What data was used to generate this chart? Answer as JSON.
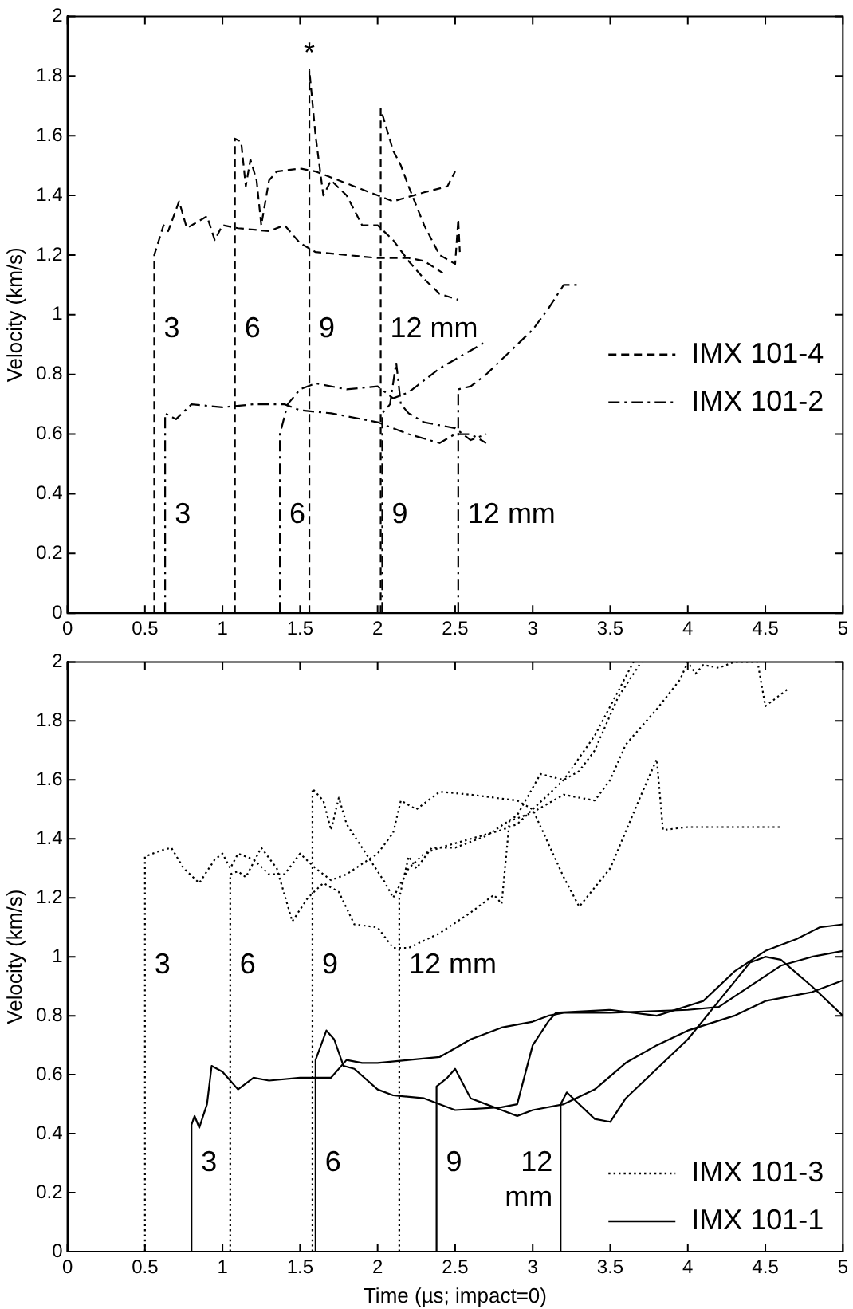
{
  "chart_data": [
    {
      "type": "line",
      "ylabel": "Velocity (km/s)",
      "xlim": [
        0,
        5
      ],
      "xticks": [
        0,
        0.5,
        1,
        1.5,
        2,
        2.5,
        3,
        3.5,
        4,
        4.5,
        5
      ],
      "ylim": [
        0,
        2
      ],
      "yticks": [
        0,
        0.2,
        0.4,
        0.6,
        0.8,
        1,
        1.2,
        1.4,
        1.6,
        1.8,
        2
      ],
      "grid": false,
      "legend": "right",
      "marker": "none",
      "series": [
        {
          "name": "IMX 101-4",
          "color": "#000000",
          "line_style": "dashed",
          "x": [
            0.56,
            0.56,
            0.62,
            0.65,
            0.72,
            0.77,
            0.9,
            0.95,
            1.0,
            1.1,
            1.3,
            1.4,
            1.5,
            1.6,
            1.8,
            2.0,
            2.2,
            2.3,
            2.42
          ],
          "values": [
            0,
            1.2,
            1.3,
            1.28,
            1.38,
            1.29,
            1.33,
            1.25,
            1.3,
            1.29,
            1.28,
            1.3,
            1.24,
            1.21,
            1.2,
            1.19,
            1.19,
            1.18,
            1.14
          ]
        },
        {
          "color": "#000000",
          "line_style": "dashed",
          "x": [
            1.08,
            1.08,
            1.12,
            1.15,
            1.18,
            1.22,
            1.25,
            1.3,
            1.35,
            1.5,
            1.6,
            1.75,
            2.0,
            2.1,
            2.3,
            2.45,
            2.5
          ],
          "values": [
            0,
            1.59,
            1.58,
            1.43,
            1.52,
            1.45,
            1.3,
            1.45,
            1.48,
            1.49,
            1.48,
            1.45,
            1.4,
            1.38,
            1.41,
            1.43,
            1.48
          ]
        },
        {
          "color": "#000000",
          "line_style": "dashed",
          "x": [
            1.56,
            1.56,
            1.6,
            1.65,
            1.7,
            1.8,
            1.9,
            2.0,
            2.1,
            2.2,
            2.3,
            2.4,
            2.52
          ],
          "values": [
            0,
            1.82,
            1.6,
            1.4,
            1.45,
            1.4,
            1.3,
            1.3,
            1.25,
            1.18,
            1.12,
            1.07,
            1.05
          ]
        },
        {
          "color": "#000000",
          "line_style": "dashed",
          "x": [
            2.02,
            2.02,
            2.1,
            2.15,
            2.2,
            2.3,
            2.4,
            2.5,
            2.52,
            2.53
          ],
          "values": [
            0,
            1.69,
            1.55,
            1.5,
            1.43,
            1.3,
            1.2,
            1.17,
            1.32,
            1.21
          ]
        },
        {
          "name": "IMX 101-2",
          "color": "#000000",
          "line_style": "dashdot",
          "x": [
            0.63,
            0.63,
            0.7,
            0.8,
            1.0,
            1.2,
            1.4,
            1.5,
            1.7,
            2.0,
            2.2,
            2.4,
            2.5,
            2.6,
            2.7
          ],
          "values": [
            0,
            0.67,
            0.65,
            0.7,
            0.69,
            0.7,
            0.7,
            0.68,
            0.67,
            0.64,
            0.6,
            0.57,
            0.6,
            0.6,
            0.57
          ]
        },
        {
          "color": "#000000",
          "line_style": "dashdot",
          "x": [
            1.37,
            1.37,
            1.42,
            1.5,
            1.6,
            1.8,
            2.0,
            2.1,
            2.2,
            2.4,
            2.6,
            2.7
          ],
          "values": [
            0,
            0.6,
            0.7,
            0.75,
            0.77,
            0.75,
            0.76,
            0.72,
            0.74,
            0.82,
            0.88,
            0.91
          ]
        },
        {
          "color": "#000000",
          "line_style": "dashdot",
          "x": [
            2.03,
            2.03,
            2.08,
            2.12,
            2.15,
            2.2,
            2.3,
            2.5,
            2.6,
            2.7
          ],
          "values": [
            0,
            0.67,
            0.7,
            0.84,
            0.7,
            0.67,
            0.64,
            0.62,
            0.58,
            0.6
          ]
        },
        {
          "color": "#000000",
          "line_style": "dashdot",
          "x": [
            2.52,
            2.52,
            2.6,
            2.7,
            2.8,
            3.0,
            3.1,
            3.2,
            3.3
          ],
          "values": [
            0,
            0.75,
            0.76,
            0.8,
            0.85,
            0.95,
            1.02,
            1.1,
            1.1
          ]
        }
      ],
      "annotations": [
        {
          "text": "*",
          "x": 1.56,
          "y": 1.82
        },
        {
          "text": "3",
          "x": 0.56,
          "y": 0.95
        },
        {
          "text": "6",
          "x": 1.08,
          "y": 0.95
        },
        {
          "text": "9",
          "x": 1.56,
          "y": 0.95
        },
        {
          "text": "12 mm",
          "x": 2.02,
          "y": 0.95
        },
        {
          "text": "3",
          "x": 0.63,
          "y": 0.33
        },
        {
          "text": "6",
          "x": 1.37,
          "y": 0.33
        },
        {
          "text": "9",
          "x": 2.03,
          "y": 0.33
        },
        {
          "text": "12 mm",
          "x": 2.52,
          "y": 0.33
        }
      ]
    },
    {
      "type": "line",
      "xlabel": "Time (µs; impact=0)",
      "ylabel": "Velocity (km/s)",
      "xlim": [
        0,
        5
      ],
      "xticks": [
        0,
        0.5,
        1,
        1.5,
        2,
        2.5,
        3,
        3.5,
        4,
        4.5,
        5
      ],
      "ylim": [
        0,
        2
      ],
      "yticks": [
        0,
        0.2,
        0.4,
        0.6,
        0.8,
        1,
        1.2,
        1.4,
        1.6,
        1.8,
        2
      ],
      "grid": false,
      "legend": "bottom right",
      "marker": "none",
      "series": [
        {
          "name": "IMX 101-3",
          "color": "#000000",
          "line_style": "dotted",
          "x": [
            0.5,
            0.5,
            0.6,
            0.67,
            0.75,
            0.85,
            0.95,
            1.0,
            1.05,
            1.1,
            1.2,
            1.3,
            1.4,
            1.5,
            1.6,
            1.7,
            1.8,
            2.0,
            2.1,
            2.15,
            2.25,
            2.4,
            2.6,
            2.9,
            3.0,
            3.2,
            3.3,
            3.5,
            3.7,
            3.8,
            3.84,
            4.0,
            4.5,
            4.6
          ],
          "values": [
            0,
            1.34,
            1.36,
            1.37,
            1.3,
            1.25,
            1.33,
            1.35,
            1.3,
            1.35,
            1.33,
            1.28,
            1.28,
            1.35,
            1.3,
            1.26,
            1.28,
            1.35,
            1.42,
            1.53,
            1.5,
            1.56,
            1.55,
            1.53,
            1.5,
            1.27,
            1.17,
            1.3,
            1.55,
            1.67,
            1.43,
            1.44,
            1.44,
            1.44
          ]
        },
        {
          "color": "#000000",
          "line_style": "dotted",
          "x": [
            1.05,
            1.05,
            1.1,
            1.15,
            1.25,
            1.35,
            1.45,
            1.55,
            1.65,
            1.75,
            1.85,
            2.0,
            2.1,
            2.2,
            2.4,
            2.6,
            2.75,
            2.8,
            2.85,
            3.0,
            3.2,
            3.4,
            3.5,
            3.6,
            3.8,
            3.95,
            4.0,
            4.05,
            4.1,
            4.2,
            4.3,
            4.45,
            4.5,
            4.65
          ],
          "values": [
            0,
            1.28,
            1.29,
            1.27,
            1.37,
            1.3,
            1.12,
            1.2,
            1.25,
            1.22,
            1.11,
            1.1,
            1.03,
            1.03,
            1.08,
            1.15,
            1.21,
            1.18,
            1.46,
            1.49,
            1.55,
            1.53,
            1.6,
            1.72,
            1.84,
            1.94,
            2.0,
            1.96,
            1.99,
            1.98,
            2.0,
            2.0,
            1.85,
            1.91
          ]
        },
        {
          "color": "#000000",
          "line_style": "dotted",
          "x": [
            1.58,
            1.58,
            1.65,
            1.7,
            1.75,
            1.8,
            1.9,
            2.05,
            2.1,
            2.2,
            2.3,
            2.4,
            2.6,
            2.8,
            2.9,
            3.0,
            3.2,
            3.4,
            3.6,
            3.65
          ],
          "values": [
            0,
            1.57,
            1.53,
            1.43,
            1.54,
            1.45,
            1.37,
            1.25,
            1.2,
            1.3,
            1.35,
            1.37,
            1.4,
            1.43,
            1.45,
            1.5,
            1.6,
            1.75,
            1.95,
            2.0
          ]
        },
        {
          "color": "#000000",
          "line_style": "dotted",
          "x": [
            2.14,
            2.14,
            2.2,
            2.25,
            2.35,
            2.5,
            2.7,
            2.9,
            3.05,
            3.2,
            3.3,
            3.4,
            3.55,
            3.7
          ],
          "values": [
            0,
            1.2,
            1.34,
            1.3,
            1.37,
            1.37,
            1.41,
            1.48,
            1.62,
            1.6,
            1.63,
            1.7,
            1.88,
            2.0
          ]
        },
        {
          "name": "IMX 101-1",
          "color": "#000000",
          "line_style": "solid",
          "x": [
            0.65,
            0.8,
            0.8,
            0.82,
            0.85,
            0.9,
            0.93,
            1.0,
            1.05,
            1.1,
            1.2,
            1.3,
            1.5,
            1.7,
            1.8,
            1.9,
            2.0,
            2.2,
            2.4,
            2.6,
            2.8,
            3.0,
            3.1,
            3.2,
            3.5,
            4.0,
            4.2,
            4.4,
            4.6,
            4.8,
            5.0
          ],
          "values": [
            0,
            0,
            0.43,
            0.46,
            0.42,
            0.5,
            0.63,
            0.61,
            0.58,
            0.55,
            0.59,
            0.58,
            0.59,
            0.59,
            0.65,
            0.64,
            0.64,
            0.65,
            0.66,
            0.72,
            0.76,
            0.78,
            0.8,
            0.81,
            0.81,
            0.82,
            0.83,
            0.9,
            0.97,
            1.0,
            1.02
          ]
        },
        {
          "color": "#000000",
          "line_style": "solid",
          "x": [
            1.6,
            1.6,
            1.67,
            1.72,
            1.78,
            1.85,
            2.0,
            2.1,
            2.3,
            2.5,
            2.8,
            2.9,
            3.0,
            3.1,
            3.15,
            3.5,
            3.8,
            4.1,
            4.3,
            4.5,
            4.7,
            4.85,
            5.0
          ],
          "values": [
            0,
            0.65,
            0.75,
            0.72,
            0.63,
            0.62,
            0.55,
            0.53,
            0.52,
            0.48,
            0.49,
            0.5,
            0.7,
            0.78,
            0.81,
            0.82,
            0.8,
            0.85,
            0.95,
            1.02,
            1.06,
            1.1,
            1.11
          ]
        },
        {
          "color": "#000000",
          "line_style": "solid",
          "x": [
            2.38,
            2.38,
            2.45,
            2.5,
            2.6,
            2.7,
            2.8,
            2.9,
            3.0,
            3.2,
            3.4,
            3.6,
            3.8,
            4.0,
            4.3,
            4.5,
            4.8,
            5.0
          ],
          "values": [
            0,
            0.56,
            0.59,
            0.62,
            0.52,
            0.5,
            0.48,
            0.46,
            0.48,
            0.5,
            0.55,
            0.64,
            0.7,
            0.75,
            0.8,
            0.85,
            0.88,
            0.92
          ]
        },
        {
          "color": "#000000",
          "line_style": "solid",
          "x": [
            3.18,
            3.18,
            3.22,
            3.3,
            3.4,
            3.5,
            3.6,
            3.8,
            4.0,
            4.2,
            4.4,
            4.5,
            4.6,
            4.8,
            5.0
          ],
          "values": [
            0,
            0.5,
            0.54,
            0.5,
            0.45,
            0.44,
            0.52,
            0.62,
            0.72,
            0.85,
            0.98,
            1.0,
            0.99,
            0.9,
            0.8
          ]
        }
      ],
      "annotations": [
        {
          "text": "3",
          "x": 0.5,
          "y": 0.97
        },
        {
          "text": "6",
          "x": 1.05,
          "y": 0.97
        },
        {
          "text": "9",
          "x": 1.58,
          "y": 0.97
        },
        {
          "text": "12 mm",
          "x": 2.14,
          "y": 0.97
        },
        {
          "text": "3",
          "x": 0.8,
          "y": 0.3
        },
        {
          "text": "6",
          "x": 1.6,
          "y": 0.3
        },
        {
          "text": "9",
          "x": 2.38,
          "y": 0.3
        },
        {
          "text": "12 mm",
          "x": 3.18,
          "y": 0.3
        }
      ]
    }
  ]
}
